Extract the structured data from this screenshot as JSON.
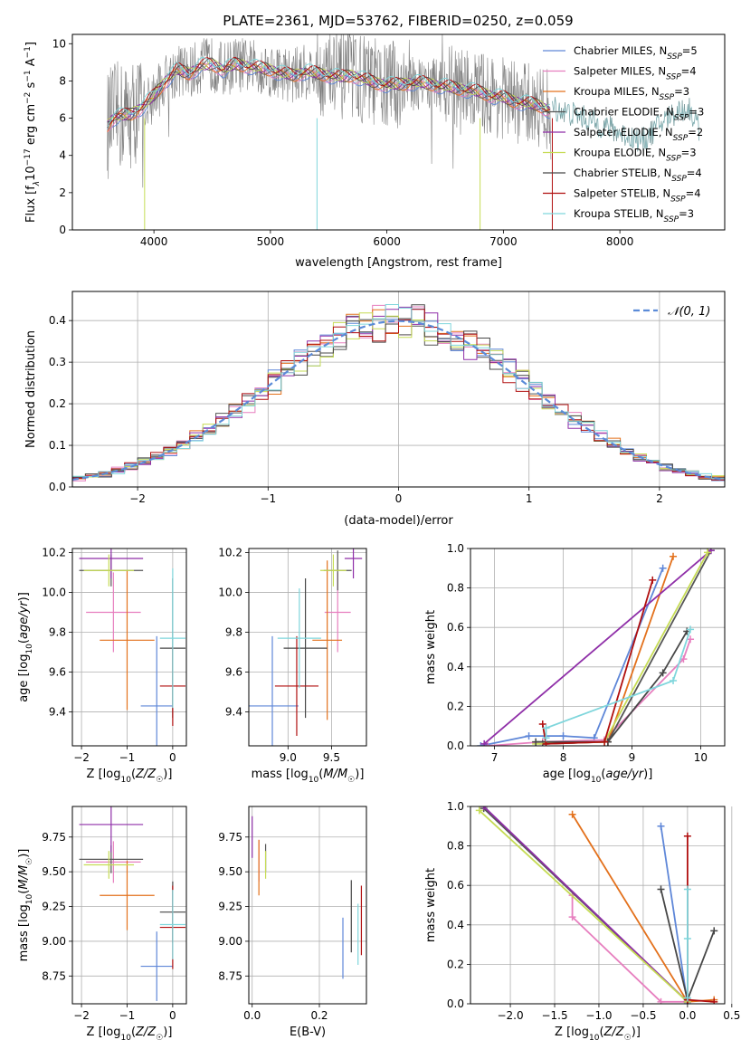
{
  "title": "PLATE=2361, MJD=53762, FIBERID=0250, z=0.059",
  "colors": {
    "Chabrier MILES": "#5f87d8",
    "Salpeter MILES": "#e77fbf",
    "Kroupa MILES": "#e3711c",
    "Chabrier ELODIE": "#555555",
    "Salpeter ELODIE": "#8f2fa8",
    "Kroupa ELODIE": "#c6dc55",
    "Chabrier STELIB": "#474747",
    "Salpeter STELIB": "#b00f0f",
    "Kroupa STELIB": "#7fd6dc",
    "data": "#808080",
    "normal": "#5b8bd8"
  },
  "chart_data": [
    {
      "id": "spectrum",
      "type": "line",
      "xlabel": "wavelength [Angstrom, rest frame]",
      "ylabel_prefix": "Flux [f",
      "ylabel_sub": "λ",
      "ylabel_mid": "10",
      "ylabel_sup1": "−17",
      "ylabel_rest": " erg cm",
      "ylabel_sup2": "−2",
      "ylabel_rest2": " s",
      "ylabel_sup3": "−1",
      "ylabel_rest3": " A",
      "ylabel_sup4": "−1",
      "ylabel_end": "]",
      "xlim": [
        3300,
        8900
      ],
      "ylim": [
        0,
        10.5
      ],
      "xticks": [
        4000,
        5000,
        6000,
        7000,
        8000
      ],
      "yticks": [
        0,
        2,
        4,
        6,
        8,
        10
      ],
      "continuum": [
        [
          3600,
          5.6
        ],
        [
          3650,
          6.0
        ],
        [
          3700,
          6.1
        ],
        [
          3800,
          6.2
        ],
        [
          3900,
          6.6
        ],
        [
          4000,
          7.2
        ],
        [
          4100,
          8.0
        ],
        [
          4200,
          8.6
        ],
        [
          4300,
          8.4
        ],
        [
          4400,
          8.8
        ],
        [
          4500,
          8.9
        ],
        [
          4600,
          8.6
        ],
        [
          4700,
          8.9
        ],
        [
          4800,
          8.8
        ],
        [
          4900,
          8.7
        ],
        [
          5000,
          8.6
        ],
        [
          5100,
          8.4
        ],
        [
          5200,
          8.3
        ],
        [
          5300,
          8.5
        ],
        [
          5400,
          8.4
        ],
        [
          5500,
          8.3
        ],
        [
          5600,
          8.2
        ],
        [
          5700,
          8.3
        ],
        [
          5800,
          8.1
        ],
        [
          5900,
          7.9
        ],
        [
          6000,
          7.8
        ],
        [
          6100,
          7.8
        ],
        [
          6200,
          7.9
        ],
        [
          6300,
          7.9
        ],
        [
          6400,
          7.8
        ],
        [
          6500,
          7.7
        ],
        [
          6600,
          7.6
        ],
        [
          6700,
          7.5
        ],
        [
          6800,
          7.4
        ],
        [
          6900,
          7.2
        ],
        [
          7000,
          7.1
        ],
        [
          7100,
          6.9
        ],
        [
          7200,
          6.8
        ],
        [
          7300,
          6.7
        ],
        [
          7400,
          6.4
        ],
        [
          7420,
          1.0
        ]
      ],
      "tail": [
        [
          7420,
          6.6
        ],
        [
          7500,
          6.4
        ],
        [
          7600,
          6.2
        ],
        [
          7700,
          6.0
        ],
        [
          7800,
          5.7
        ],
        [
          7900,
          5.5
        ],
        [
          8000,
          5.2
        ],
        [
          8100,
          5.0
        ],
        [
          8200,
          4.8
        ],
        [
          8300,
          5.4
        ],
        [
          8400,
          6.0
        ],
        [
          8500,
          6.4
        ],
        [
          8600,
          6.5
        ],
        [
          8680,
          5.4
        ]
      ],
      "legend": [
        {
          "label": "Chabrier MILES, N",
          "n": "=5"
        },
        {
          "label": "Salpeter MILES, N",
          "n": "=4"
        },
        {
          "label": "Kroupa MILES, N",
          "n": "=3"
        },
        {
          "label": "Chabrier ELODIE, N",
          "n": "=3"
        },
        {
          "label": "Salpeter ELODIE, N",
          "n": "=2"
        },
        {
          "label": "Kroupa ELODIE, N",
          "n": "=3"
        },
        {
          "label": "Chabrier STELIB, N",
          "n": "=4"
        },
        {
          "label": "Salpeter STELIB, N",
          "n": "=4"
        },
        {
          "label": "Kroupa STELIB, N",
          "n": "=3"
        }
      ],
      "legend_sub": "SSP",
      "legend_placement": "top-right"
    },
    {
      "id": "residuals",
      "type": "histogram",
      "xlabel": "(data-model)/error",
      "ylabel": "Normed distribution",
      "xlim": [
        -2.5,
        2.5
      ],
      "ylim": [
        0,
        0.47
      ],
      "xticks": [
        -2,
        -1,
        0,
        1,
        2
      ],
      "yticks": [
        0.0,
        0.1,
        0.2,
        0.3,
        0.4
      ],
      "legend": "𝒩(0, 1)",
      "legend_placement": "top-right",
      "bin_width": 0.1
    },
    {
      "id": "age_vs_z",
      "type": "errorbar",
      "xlabel": "Z [log10(Z/Z☉)]",
      "ylabel": "age  [log10(age/yr)]",
      "xlim": [
        -2.2,
        0.3
      ],
      "ylim": [
        9.23,
        10.22
      ],
      "xticks": [
        -2,
        -1,
        0
      ],
      "yticks": [
        9.4,
        9.6,
        9.8,
        10.0,
        10.2
      ],
      "points": [
        {
          "s": "Chabrier MILES",
          "x": -0.35,
          "xe": 0.35,
          "y": 9.43,
          "ye": 0.35
        },
        {
          "s": "Salpeter MILES",
          "x": -1.3,
          "xe": 0.6,
          "y": 9.9,
          "ye": 0.2
        },
        {
          "s": "Kroupa MILES",
          "x": -1.0,
          "xe": 0.6,
          "y": 9.76,
          "ye": 0.35
        },
        {
          "s": "Chabrier ELODIE",
          "x": -1.35,
          "xe": 0.7,
          "y": 10.11,
          "ye": 0.08
        },
        {
          "s": "Salpeter ELODIE",
          "x": -1.35,
          "xe": 0.7,
          "y": 10.17,
          "ye": 0.1
        },
        {
          "s": "Kroupa ELODIE",
          "x": -1.4,
          "xe": 0.55,
          "y": 10.11,
          "ye": 0.08
        },
        {
          "s": "Chabrier STELIB",
          "x": 0.0,
          "xe": 0.28,
          "y": 9.72,
          "ye": 0.35
        },
        {
          "s": "Salpeter STELIB",
          "x": 0.0,
          "xe": 0.28,
          "y": 9.53,
          "ye": 0.2
        },
        {
          "s": "Kroupa STELIB",
          "x": 0.0,
          "xe": 0.28,
          "y": 9.77,
          "ye": 0.35
        }
      ]
    },
    {
      "id": "age_vs_mass",
      "type": "errorbar",
      "xlabel": "mass [log10(M/M☉)]",
      "ylabel": "",
      "xlim": [
        8.55,
        9.9
      ],
      "ylim": [
        9.23,
        10.22
      ],
      "xticks": [
        9.0,
        9.5
      ],
      "yticks": [
        9.4,
        9.6,
        9.8,
        10.0,
        10.2
      ],
      "points": [
        {
          "s": "Chabrier MILES",
          "x": 8.82,
          "xe": 0.3,
          "y": 9.43,
          "ye": 0.35
        },
        {
          "s": "Salpeter MILES",
          "x": 9.57,
          "xe": 0.15,
          "y": 9.9,
          "ye": 0.2
        },
        {
          "s": "Kroupa MILES",
          "x": 9.45,
          "xe": 0.17,
          "y": 9.76,
          "ye": 0.4
        },
        {
          "s": "Chabrier ELODIE",
          "x": 9.57,
          "xe": 0.16,
          "y": 10.11,
          "ye": 0.1
        },
        {
          "s": "Salpeter ELODIE",
          "x": 9.75,
          "xe": 0.1,
          "y": 10.17,
          "ye": 0.1
        },
        {
          "s": "Kroupa ELODIE",
          "x": 9.52,
          "xe": 0.15,
          "y": 10.11,
          "ye": 0.08
        },
        {
          "s": "Chabrier STELIB",
          "x": 9.2,
          "xe": 0.25,
          "y": 9.72,
          "ye": 0.35
        },
        {
          "s": "Salpeter STELIB",
          "x": 9.1,
          "xe": 0.25,
          "y": 9.53,
          "ye": 0.25
        },
        {
          "s": "Kroupa STELIB",
          "x": 9.13,
          "xe": 0.25,
          "y": 9.77,
          "ye": 0.25
        }
      ]
    },
    {
      "id": "weight_vs_age",
      "type": "line",
      "xlabel": "age  [log10(age/yr)]",
      "ylabel": "mass weight",
      "xlim": [
        6.65,
        10.35
      ],
      "ylim": [
        0,
        1
      ],
      "xticks": [
        7,
        8,
        9,
        10
      ],
      "yticks": [
        0.0,
        0.2,
        0.4,
        0.6,
        0.8,
        1.0
      ],
      "series": [
        {
          "s": "Chabrier MILES",
          "pts": [
            [
              6.8,
              0.0
            ],
            [
              7.5,
              0.05
            ],
            [
              8.0,
              0.05
            ],
            [
              8.45,
              0.04
            ],
            [
              9.45,
              0.9
            ]
          ]
        },
        {
          "s": "Salpeter MILES",
          "pts": [
            [
              6.9,
              0.0
            ],
            [
              7.7,
              0.02
            ],
            [
              8.6,
              0.03
            ],
            [
              9.75,
              0.44
            ],
            [
              9.85,
              0.54
            ]
          ]
        },
        {
          "s": "Kroupa MILES",
          "pts": [
            [
              7.7,
              0.01
            ],
            [
              8.65,
              0.02
            ],
            [
              9.6,
              0.96
            ]
          ]
        },
        {
          "s": "Chabrier ELODIE",
          "pts": [
            [
              7.7,
              0.01
            ],
            [
              8.65,
              0.02
            ],
            [
              10.15,
              0.99
            ]
          ]
        },
        {
          "s": "Salpeter ELODIE",
          "pts": [
            [
              6.85,
              0.01
            ],
            [
              10.15,
              0.99
            ]
          ]
        },
        {
          "s": "Kroupa ELODIE",
          "pts": [
            [
              7.6,
              0.01
            ],
            [
              8.6,
              0.02
            ],
            [
              10.1,
              0.98
            ]
          ]
        },
        {
          "s": "Chabrier STELIB",
          "pts": [
            [
              7.6,
              0.02
            ],
            [
              8.65,
              0.02
            ],
            [
              9.45,
              0.37
            ],
            [
              9.8,
              0.58
            ]
          ]
        },
        {
          "s": "Salpeter STELIB",
          "pts": [
            [
              7.7,
              0.11
            ],
            [
              7.75,
              0.01
            ],
            [
              8.6,
              0.02
            ],
            [
              9.3,
              0.84
            ]
          ]
        },
        {
          "s": "Kroupa STELIB",
          "pts": [
            [
              7.75,
              0.04
            ],
            [
              7.75,
              0.09
            ],
            [
              9.6,
              0.33
            ],
            [
              9.85,
              0.59
            ]
          ]
        }
      ]
    },
    {
      "id": "mass_vs_z",
      "type": "errorbar",
      "xlabel": "Z [log10(Z/Z☉)]",
      "ylabel": "mass [log10(M/M☉)]",
      "xlim": [
        -2.2,
        0.3
      ],
      "ylim": [
        8.55,
        9.97
      ],
      "xticks": [
        -2,
        -1,
        0
      ],
      "yticks": [
        8.75,
        9.0,
        9.25,
        9.5,
        9.75
      ],
      "points": [
        {
          "s": "Chabrier MILES",
          "x": -0.35,
          "xe": 0.35,
          "y": 8.82,
          "ye": 0.25
        },
        {
          "s": "Salpeter MILES",
          "x": -1.3,
          "xe": 0.6,
          "y": 9.57,
          "ye": 0.15
        },
        {
          "s": "Kroupa MILES",
          "x": -1.0,
          "xe": 0.6,
          "y": 9.33,
          "ye": 0.25
        },
        {
          "s": "Chabrier ELODIE",
          "x": -1.35,
          "xe": 0.7,
          "y": 9.59,
          "ye": 0.1
        },
        {
          "s": "Salpeter ELODIE",
          "x": -1.35,
          "xe": 0.7,
          "y": 9.84,
          "ye": 0.2
        },
        {
          "s": "Kroupa ELODIE",
          "x": -1.4,
          "xe": 0.55,
          "y": 9.55,
          "ye": 0.1
        },
        {
          "s": "Chabrier STELIB",
          "x": 0.0,
          "xe": 0.28,
          "y": 9.21,
          "ye": 0.22
        },
        {
          "s": "Salpeter STELIB",
          "x": 0.0,
          "xe": 0.28,
          "y": 9.1,
          "ye": 0.3
        },
        {
          "s": "Kroupa STELIB",
          "x": 0.0,
          "xe": 0.28,
          "y": 9.12,
          "ye": 0.25
        }
      ]
    },
    {
      "id": "mass_vs_ebv",
      "type": "errorbar",
      "xlabel": "E(B-V)",
      "ylabel": "",
      "xlim": [
        -0.01,
        0.34
      ],
      "ylim": [
        8.55,
        9.97
      ],
      "xticks": [
        0.0,
        0.2
      ],
      "yticks": [
        8.75,
        9.0,
        9.25,
        9.5,
        9.75
      ],
      "points": [
        {
          "s": "Chabrier MILES",
          "x": 0.27,
          "xe": 0,
          "y": 8.95,
          "ye": 0.22
        },
        {
          "s": "Salpeter MILES",
          "x": 0.02,
          "xe": 0,
          "y": 9.58,
          "ye": 0.15
        },
        {
          "s": "Kroupa MILES",
          "x": 0.02,
          "xe": 0,
          "y": 9.53,
          "ye": 0.2
        },
        {
          "s": "Chabrier ELODIE",
          "x": 0.04,
          "xe": 0,
          "y": 9.6,
          "ye": 0.1
        },
        {
          "s": "Salpeter ELODIE",
          "x": 0.0,
          "xe": 0,
          "y": 9.75,
          "ye": 0.15
        },
        {
          "s": "Kroupa ELODIE",
          "x": 0.04,
          "xe": 0,
          "y": 9.55,
          "ye": 0.1
        },
        {
          "s": "Chabrier STELIB",
          "x": 0.295,
          "xe": 0,
          "y": 9.18,
          "ye": 0.26
        },
        {
          "s": "Salpeter STELIB",
          "x": 0.325,
          "xe": 0,
          "y": 9.15,
          "ye": 0.25
        },
        {
          "s": "Kroupa STELIB",
          "x": 0.315,
          "xe": 0,
          "y": 9.05,
          "ye": 0.22
        }
      ]
    },
    {
      "id": "weight_vs_z",
      "type": "line",
      "xlabel": "Z [log10(Z/Z☉)]",
      "ylabel": "mass weight",
      "xlim": [
        -2.45,
        0.42
      ],
      "ylim": [
        0,
        1
      ],
      "xticks": [
        -2.0,
        -1.5,
        -1.0,
        -0.5,
        0.0,
        0.5
      ],
      "yticks": [
        0.0,
        0.2,
        0.4,
        0.6,
        0.8,
        1.0
      ],
      "series": [
        {
          "s": "Chabrier MILES",
          "pts": [
            [
              -0.3,
              0.9
            ],
            [
              0.0,
              0.0
            ]
          ]
        },
        {
          "s": "Salpeter MILES",
          "pts": [
            [
              -1.3,
              0.55
            ],
            [
              -1.3,
              0.44
            ],
            [
              -0.3,
              0.01
            ],
            [
              0.0,
              0.01
            ]
          ]
        },
        {
          "s": "Kroupa MILES",
          "pts": [
            [
              -1.3,
              0.96
            ],
            [
              0.0,
              0.01
            ],
            [
              0.3,
              0.02
            ]
          ]
        },
        {
          "s": "Chabrier ELODIE",
          "pts": [
            [
              -2.3,
              0.99
            ],
            [
              0.0,
              0.01
            ]
          ]
        },
        {
          "s": "Salpeter ELODIE",
          "pts": [
            [
              -2.3,
              1.0
            ],
            [
              0.0,
              0.01
            ]
          ]
        },
        {
          "s": "Kroupa ELODIE",
          "pts": [
            [
              -2.35,
              0.98
            ],
            [
              0.0,
              0.01
            ]
          ]
        },
        {
          "s": "Chabrier STELIB",
          "pts": [
            [
              -0.3,
              0.58
            ],
            [
              0.0,
              0.02
            ],
            [
              0.3,
              0.37
            ]
          ]
        },
        {
          "s": "Salpeter STELIB",
          "pts": [
            [
              0.0,
              0.85
            ],
            [
              0.0,
              0.02
            ],
            [
              0.3,
              0.01
            ]
          ]
        },
        {
          "s": "Kroupa STELIB",
          "pts": [
            [
              0.0,
              0.58
            ],
            [
              0.0,
              0.03
            ],
            [
              0.0,
              0.33
            ]
          ]
        }
      ]
    }
  ]
}
